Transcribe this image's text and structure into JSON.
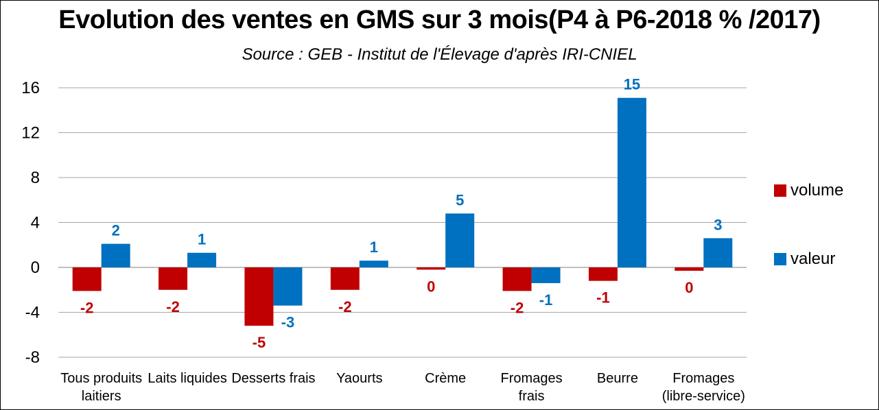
{
  "chart_data": {
    "type": "bar",
    "title": "Evolution des ventes en GMS sur 3 mois(P4 à P6-2018 % /2017)",
    "subtitle": "Source : GEB - Institut de l'Élevage d'après  IRI-CNIEL",
    "categories": [
      [
        "Tous produits",
        "laitiers"
      ],
      [
        "Laits liquides"
      ],
      [
        "Desserts frais"
      ],
      [
        "Yaourts"
      ],
      [
        "Crème"
      ],
      [
        "Fromages",
        "frais"
      ],
      [
        "Beurre"
      ],
      [
        "Fromages",
        "(libre-service)"
      ]
    ],
    "series": [
      {
        "name": "volume",
        "color": "#c00000",
        "values": [
          -2.1,
          -2.0,
          -5.2,
          -2.0,
          -0.2,
          -2.1,
          -1.2,
          -0.3
        ],
        "labels": [
          "-2",
          "-2",
          "-5",
          "-2",
          "0",
          "-2",
          "-1",
          "0"
        ]
      },
      {
        "name": "valeur",
        "color": "#0070c0",
        "values": [
          2.1,
          1.3,
          -3.4,
          0.6,
          4.8,
          -1.4,
          15.1,
          2.6
        ],
        "labels": [
          "2",
          "1",
          "-3",
          "1",
          "5",
          "-1",
          "15",
          "3"
        ]
      }
    ],
    "ylim": [
      -8,
      16
    ],
    "yticks": [
      -8,
      -4,
      0,
      4,
      8,
      12,
      16
    ],
    "grid": true,
    "legend": "right"
  }
}
